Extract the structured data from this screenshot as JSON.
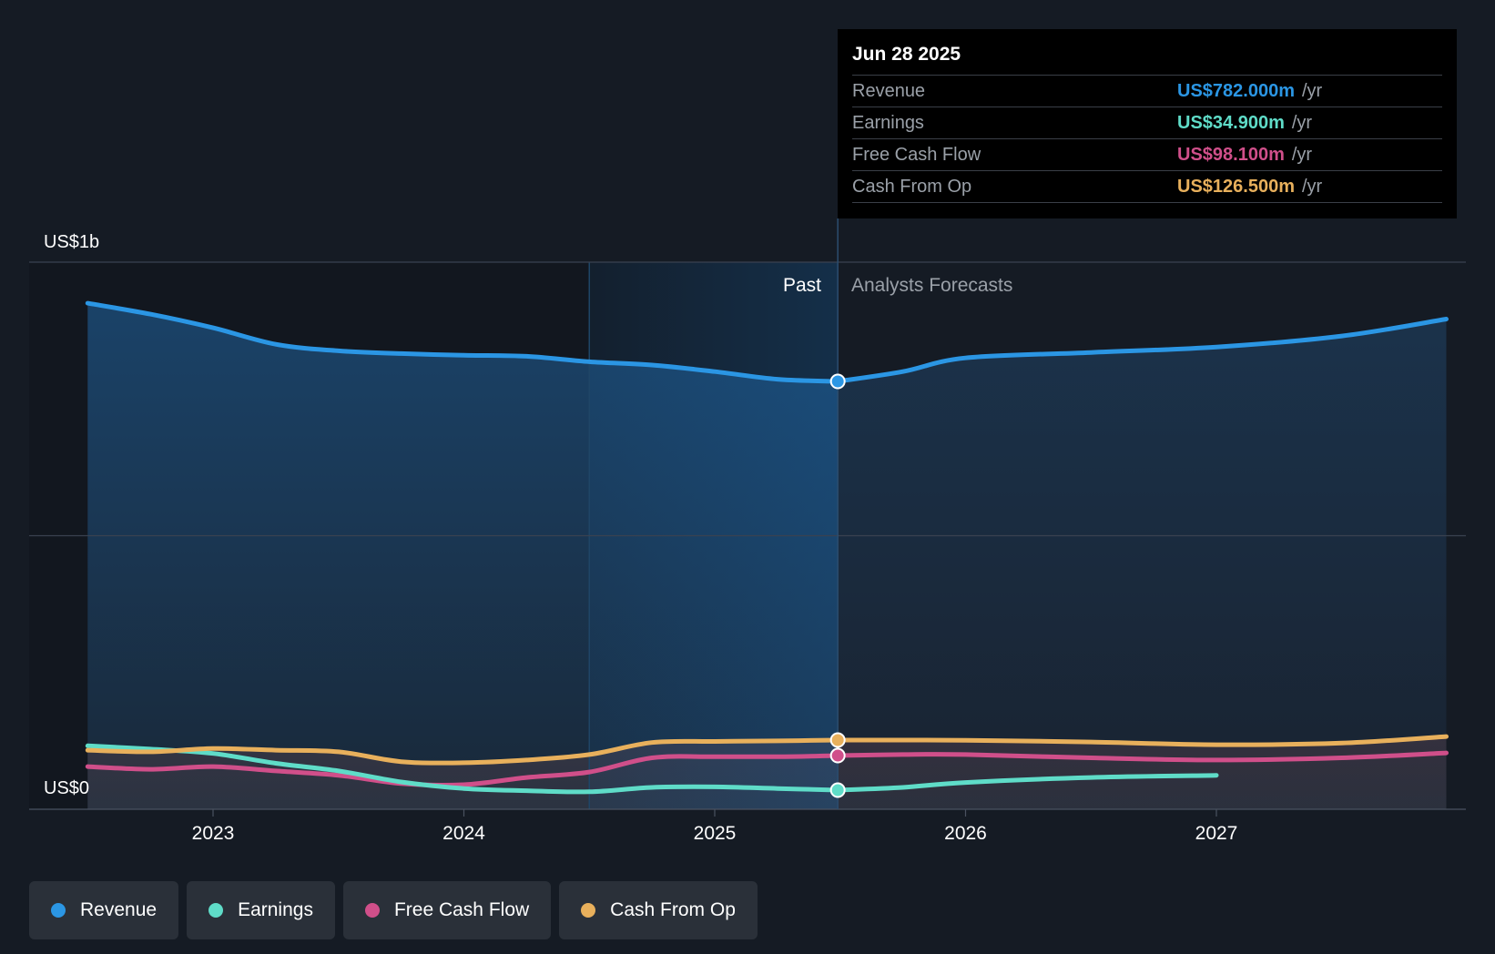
{
  "chart_data": {
    "type": "line",
    "y_axis": {
      "top_label": "US$1b",
      "bottom_label": "US$0",
      "ylim": [
        0,
        1000
      ]
    },
    "x_ticks": [
      "2023",
      "2024",
      "2025",
      "2026",
      "2027"
    ],
    "divider_labels": {
      "past": "Past",
      "forecast": "Analysts Forecasts"
    },
    "series": [
      {
        "name": "Revenue",
        "color": "#2b96e4",
        "x": [
          "2022-07",
          "2022-10",
          "2023-01",
          "2023-04",
          "2023-07",
          "2023-10",
          "2024-01",
          "2024-04",
          "2024-07",
          "2024-10",
          "2025-01",
          "2025-04",
          "2025-06-28"
        ],
        "values": [
          925,
          905,
          880,
          850,
          838,
          833,
          830,
          828,
          818,
          812,
          800,
          786,
          782
        ]
      },
      {
        "name": "Revenue forecast",
        "color": "#2b96e4",
        "x": [
          "2025-06-28",
          "2025-10",
          "2026-01",
          "2026-07",
          "2027-01",
          "2027-07",
          "2027-12"
        ],
        "values": [
          782,
          800,
          825,
          835,
          845,
          865,
          896
        ]
      },
      {
        "name": "Earnings",
        "color": "#5fdcc8",
        "x": [
          "2022-07",
          "2022-10",
          "2023-01",
          "2023-04",
          "2023-07",
          "2023-10",
          "2024-01",
          "2024-04",
          "2024-07",
          "2024-10",
          "2025-01",
          "2025-04",
          "2025-06-28"
        ],
        "values": [
          116,
          110,
          102,
          84,
          70,
          50,
          38,
          34,
          32,
          40,
          41,
          38,
          34.9
        ]
      },
      {
        "name": "Earnings forecast",
        "color": "#5fdcc8",
        "x": [
          "2025-06-28",
          "2025-10",
          "2026-01",
          "2026-07",
          "2027-01"
        ],
        "values": [
          34.9,
          40,
          49,
          58,
          62
        ]
      },
      {
        "name": "Free Cash Flow",
        "color": "#d04f8a",
        "x": [
          "2022-07",
          "2022-10",
          "2023-01",
          "2023-04",
          "2023-07",
          "2023-10",
          "2024-01",
          "2024-04",
          "2024-07",
          "2024-10",
          "2025-01",
          "2025-04",
          "2025-06-28"
        ],
        "values": [
          78,
          73,
          78,
          70,
          62,
          47,
          45,
          58,
          68,
          94,
          96,
          96,
          98.1
        ]
      },
      {
        "name": "Free Cash Flow forecast",
        "color": "#d04f8a",
        "x": [
          "2025-06-28",
          "2025-10",
          "2026-01",
          "2026-07",
          "2027-01",
          "2027-07",
          "2027-12"
        ],
        "values": [
          98.1,
          100,
          100,
          94,
          90,
          94,
          103
        ]
      },
      {
        "name": "Cash From Op",
        "color": "#e8b05c",
        "x": [
          "2022-07",
          "2022-10",
          "2023-01",
          "2023-04",
          "2023-07",
          "2023-10",
          "2024-01",
          "2024-04",
          "2024-07",
          "2024-10",
          "2025-01",
          "2025-04",
          "2025-06-28"
        ],
        "values": [
          108,
          105,
          111,
          108,
          105,
          87,
          85,
          90,
          100,
          122,
          124,
          125,
          126.5
        ]
      },
      {
        "name": "Cash From Op forecast",
        "color": "#e8b05c",
        "x": [
          "2025-06-28",
          "2025-10",
          "2026-01",
          "2026-07",
          "2027-01",
          "2027-07",
          "2027-12"
        ],
        "values": [
          126.5,
          126.5,
          126,
          123,
          118,
          121,
          133
        ]
      }
    ],
    "past_cutoff": "2025-06-28",
    "highlight_start": "2024-07",
    "grid": true
  },
  "tooltip": {
    "date": "Jun 28 2025",
    "rows": [
      {
        "label": "Revenue",
        "value": "US$782.000m",
        "unit": "/yr",
        "color": "#2b96e4"
      },
      {
        "label": "Earnings",
        "value": "US$34.900m",
        "unit": "/yr",
        "color": "#5fdcc8"
      },
      {
        "label": "Free Cash Flow",
        "value": "US$98.100m",
        "unit": "/yr",
        "color": "#d04f8a"
      },
      {
        "label": "Cash From Op",
        "value": "US$126.500m",
        "unit": "/yr",
        "color": "#e8b05c"
      }
    ]
  },
  "legend": [
    {
      "label": "Revenue",
      "color": "#2b96e4"
    },
    {
      "label": "Earnings",
      "color": "#5fdcc8"
    },
    {
      "label": "Free Cash Flow",
      "color": "#d04f8a"
    },
    {
      "label": "Cash From Op",
      "color": "#e8b05c"
    }
  ]
}
